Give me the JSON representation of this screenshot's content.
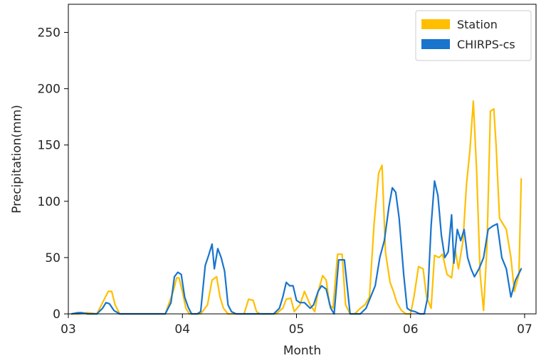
{
  "chart_data": {
    "type": "line",
    "title": "",
    "xlabel": "Month",
    "ylabel": "Precipitation(mm)",
    "xlim": [
      3.0,
      7.1
    ],
    "ylim": [
      0,
      275
    ],
    "x_ticks": [
      {
        "value": 3,
        "label": "03"
      },
      {
        "value": 4,
        "label": "04"
      },
      {
        "value": 5,
        "label": "05"
      },
      {
        "value": 6,
        "label": "06"
      },
      {
        "value": 7,
        "label": "07"
      }
    ],
    "y_ticks": [
      {
        "value": 0,
        "label": "0"
      },
      {
        "value": 50,
        "label": "50"
      },
      {
        "value": 100,
        "label": "100"
      },
      {
        "value": 150,
        "label": "150"
      },
      {
        "value": 200,
        "label": "200"
      },
      {
        "value": 250,
        "label": "250"
      }
    ],
    "grid": false,
    "legend_position": "top-right",
    "series": [
      {
        "name": "Station",
        "color": "#FFBF00",
        "x": [
          3.03,
          3.08,
          3.17,
          3.25,
          3.3,
          3.35,
          3.38,
          3.41,
          3.45,
          3.55,
          3.7,
          3.85,
          3.92,
          3.95,
          3.97,
          4.0,
          4.03,
          4.06,
          4.1,
          4.16,
          4.22,
          4.26,
          4.3,
          4.33,
          4.36,
          4.4,
          4.46,
          4.54,
          4.58,
          4.62,
          4.65,
          4.68,
          4.75,
          4.82,
          4.88,
          4.91,
          4.95,
          4.98,
          5.03,
          5.07,
          5.12,
          5.16,
          5.19,
          5.23,
          5.26,
          5.29,
          5.32,
          5.36,
          5.4,
          5.43,
          5.47,
          5.51,
          5.56,
          5.6,
          5.64,
          5.68,
          5.72,
          5.75,
          5.78,
          5.82,
          5.85,
          5.88,
          5.92,
          5.96,
          6.0,
          6.03,
          6.07,
          6.11,
          6.14,
          6.18,
          6.21,
          6.25,
          6.28,
          6.32,
          6.36,
          6.39,
          6.42,
          6.46,
          6.49,
          6.52,
          6.55,
          6.58,
          6.61,
          6.64,
          6.67,
          6.7,
          6.73,
          6.75,
          6.78,
          6.81,
          6.84,
          6.88,
          6.91,
          6.95,
          6.97
        ],
        "values": [
          0,
          0,
          1,
          0,
          10,
          20,
          20,
          8,
          0,
          0,
          0,
          0,
          20,
          32,
          32,
          20,
          5,
          0,
          0,
          0,
          8,
          30,
          33,
          15,
          5,
          0,
          0,
          0,
          13,
          12,
          2,
          0,
          0,
          0,
          5,
          13,
          14,
          2,
          8,
          20,
          8,
          2,
          20,
          34,
          30,
          8,
          5,
          53,
          53,
          8,
          0,
          0,
          5,
          8,
          15,
          80,
          125,
          132,
          55,
          28,
          20,
          10,
          3,
          0,
          0,
          15,
          42,
          40,
          15,
          5,
          52,
          50,
          53,
          35,
          32,
          58,
          40,
          65,
          115,
          145,
          189,
          125,
          35,
          3,
          60,
          180,
          182,
          150,
          85,
          80,
          75,
          50,
          20,
          35,
          120
        ]
      },
      {
        "name": "CHIRPS-cs",
        "color": "#1874CD",
        "x": [
          3.03,
          3.08,
          3.12,
          3.17,
          3.25,
          3.3,
          3.33,
          3.36,
          3.4,
          3.45,
          3.55,
          3.7,
          3.85,
          3.9,
          3.93,
          3.96,
          3.99,
          4.02,
          4.05,
          4.08,
          4.13,
          4.16,
          4.2,
          4.23,
          4.26,
          4.28,
          4.31,
          4.34,
          4.37,
          4.4,
          4.43,
          4.47,
          4.52,
          4.6,
          4.7,
          4.8,
          4.85,
          4.88,
          4.91,
          4.94,
          4.97,
          5.0,
          5.03,
          5.07,
          5.12,
          5.15,
          5.19,
          5.22,
          5.26,
          5.3,
          5.33,
          5.37,
          5.42,
          5.47,
          5.52,
          5.56,
          5.61,
          5.65,
          5.69,
          5.73,
          5.77,
          5.81,
          5.84,
          5.87,
          5.9,
          5.94,
          5.97,
          6.0,
          6.04,
          6.08,
          6.12,
          6.15,
          6.18,
          6.21,
          6.24,
          6.27,
          6.3,
          6.33,
          6.36,
          6.38,
          6.41,
          6.44,
          6.47,
          6.5,
          6.53,
          6.56,
          6.6,
          6.64,
          6.68,
          6.72,
          6.76,
          6.8,
          6.84,
          6.88,
          6.92,
          6.97
        ],
        "values": [
          0,
          1,
          1,
          0,
          0,
          5,
          10,
          9,
          3,
          0,
          0,
          0,
          0,
          10,
          33,
          37,
          35,
          15,
          6,
          0,
          0,
          2,
          43,
          52,
          62,
          40,
          58,
          50,
          38,
          8,
          2,
          0,
          0,
          0,
          0,
          0,
          5,
          15,
          28,
          25,
          25,
          12,
          10,
          10,
          5,
          8,
          20,
          25,
          22,
          5,
          0,
          48,
          48,
          0,
          0,
          0,
          5,
          15,
          25,
          50,
          65,
          95,
          112,
          108,
          85,
          35,
          5,
          3,
          2,
          0,
          0,
          15,
          78,
          118,
          105,
          70,
          50,
          55,
          88,
          45,
          75,
          65,
          75,
          50,
          40,
          33,
          40,
          50,
          75,
          78,
          80,
          50,
          40,
          15,
          30,
          40
        ]
      }
    ]
  }
}
